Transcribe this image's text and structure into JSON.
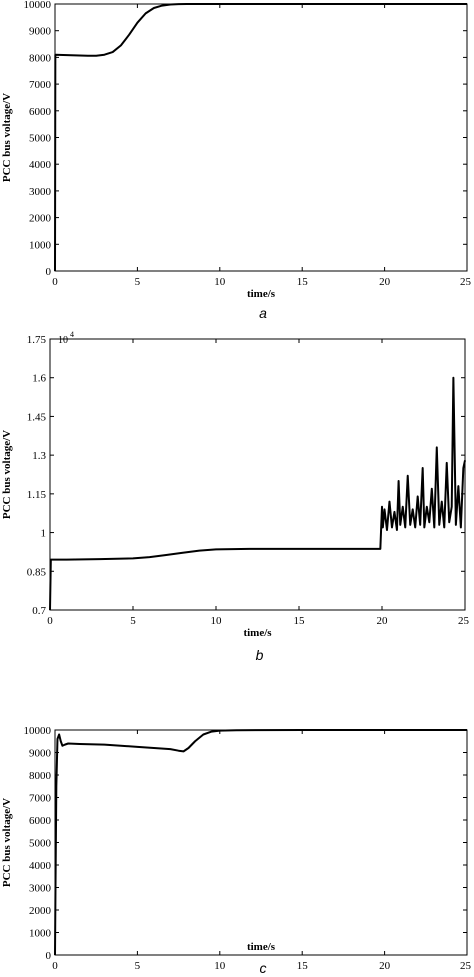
{
  "chart_data": [
    {
      "type": "line",
      "caption": "a",
      "xlabel": "time/s",
      "ylabel": "PCC bus voltage/V",
      "xlim": [
        0,
        25
      ],
      "ylim": [
        0,
        10000
      ],
      "xticks": [
        0,
        5,
        10,
        15,
        20,
        25
      ],
      "yticks": [
        0,
        1000,
        2000,
        3000,
        4000,
        5000,
        6000,
        7000,
        8000,
        9000,
        10000
      ],
      "ytick_labels": [
        "0",
        "1000",
        "2000",
        "3000",
        "4000",
        "5000",
        "6000",
        "7000",
        "8000",
        "9000",
        "10000"
      ],
      "series": [
        {
          "x": [
            0,
            0.02,
            0.5,
            1,
            2,
            2.5,
            3,
            3.5,
            4,
            4.5,
            5,
            5.5,
            6,
            6.5,
            7,
            7.5,
            8,
            9,
            10,
            15,
            20,
            25
          ],
          "y": [
            0,
            8100,
            8090,
            8080,
            8060,
            8060,
            8100,
            8200,
            8450,
            8850,
            9300,
            9650,
            9850,
            9940,
            9980,
            9995,
            10000,
            10000,
            10000,
            10000,
            10000,
            10000
          ]
        }
      ]
    },
    {
      "type": "line",
      "caption": "b",
      "xlabel": "time/s",
      "ylabel": "PCC bus voltage/V",
      "multiplier": "10",
      "multiplier_exp": "4",
      "xlim": [
        0,
        25
      ],
      "ylim": [
        0.7,
        1.75
      ],
      "xticks": [
        0,
        5,
        10,
        15,
        20,
        25
      ],
      "yticks": [
        0.7,
        0.85,
        1,
        1.15,
        1.3,
        1.45,
        1.6,
        1.75
      ],
      "ytick_labels": [
        "0.7",
        "0.85",
        "1",
        "1.15",
        "1.3",
        "1.45",
        "1.6",
        "1.75"
      ],
      "series": [
        {
          "x": [
            0,
            0.05,
            1,
            3,
            5,
            6,
            7,
            8,
            9,
            10,
            12,
            15,
            18,
            19.9,
            20,
            20.05,
            20.15,
            20.3,
            20.45,
            20.6,
            20.75,
            20.9,
            21.0,
            21.1,
            21.25,
            21.4,
            21.55,
            21.7,
            21.85,
            22.0,
            22.15,
            22.3,
            22.45,
            22.55,
            22.7,
            22.85,
            23.0,
            23.15,
            23.3,
            23.45,
            23.6,
            23.75,
            23.9,
            24.05,
            24.2,
            24.3,
            24.45,
            24.6,
            24.75,
            24.9,
            25.0
          ],
          "y": [
            0.7,
            0.895,
            0.895,
            0.897,
            0.9,
            0.905,
            0.913,
            0.922,
            0.93,
            0.935,
            0.937,
            0.937,
            0.937,
            0.937,
            1.1,
            1.02,
            1.09,
            1.01,
            1.12,
            1.02,
            1.08,
            1.01,
            1.2,
            1.03,
            1.1,
            1.02,
            1.22,
            1.03,
            1.09,
            1.02,
            1.14,
            1.03,
            1.25,
            1.02,
            1.1,
            1.04,
            1.17,
            1.02,
            1.33,
            1.03,
            1.12,
            1.02,
            1.27,
            1.04,
            1.1,
            1.6,
            1.03,
            1.18,
            1.02,
            1.25,
            1.28
          ]
        }
      ]
    },
    {
      "type": "line",
      "caption": "c",
      "xlabel": "time/s",
      "ylabel": "PCC bus voltage/V",
      "xlim": [
        0,
        25
      ],
      "ylim": [
        0,
        10000
      ],
      "xticks": [
        0,
        5,
        10,
        15,
        20,
        25
      ],
      "yticks": [
        0,
        1000,
        2000,
        3000,
        4000,
        5000,
        6000,
        7000,
        8000,
        9000,
        10000
      ],
      "ytick_labels": [
        "0",
        "1000",
        "2000",
        "3000",
        "4000",
        "5000",
        "6000",
        "7000",
        "8000",
        "9000",
        "10000"
      ],
      "series": [
        {
          "x": [
            0,
            0.03,
            0.08,
            0.15,
            0.25,
            0.35,
            0.45,
            0.6,
            0.8,
            1.5,
            3,
            4,
            5,
            6,
            7,
            7.5,
            7.8,
            8.1,
            8.5,
            9,
            9.5,
            10,
            11,
            15,
            20,
            25
          ],
          "y": [
            0,
            3000,
            7500,
            9600,
            9800,
            9500,
            9300,
            9350,
            9400,
            9380,
            9350,
            9300,
            9250,
            9200,
            9150,
            9080,
            9050,
            9200,
            9500,
            9800,
            9930,
            9970,
            9990,
            10000,
            10000,
            10000
          ]
        }
      ]
    }
  ]
}
